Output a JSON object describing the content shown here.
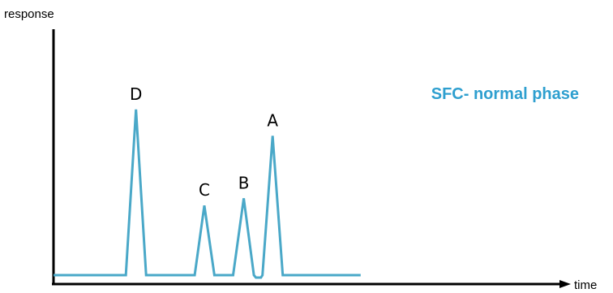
{
  "chart_data": {
    "type": "line",
    "title": "SFC- normal phase",
    "xlabel": "time",
    "ylabel": "response",
    "grid": false,
    "legend": "none",
    "colors": {
      "trace": "#4aa8c8",
      "title": "#2e9fcf",
      "axis": "#000000"
    },
    "xlim": [
      0,
      100
    ],
    "ylim": [
      0,
      100
    ],
    "series": [
      {
        "points": [
          [
            0,
            1
          ],
          [
            14.3,
            1
          ],
          [
            16.3,
            70
          ],
          [
            18.3,
            1
          ],
          [
            27.9,
            1
          ],
          [
            29.8,
            30
          ],
          [
            31.8,
            1
          ],
          [
            35.5,
            1
          ],
          [
            37.6,
            33
          ],
          [
            39.6,
            1
          ],
          [
            40.0,
            0
          ],
          [
            41.0,
            0
          ],
          [
            41.3,
            1
          ],
          [
            43.3,
            59
          ],
          [
            45.3,
            1
          ],
          [
            60.7,
            1
          ]
        ]
      }
    ],
    "peak_labels": [
      {
        "text": "D",
        "x": 16.3,
        "y": 70
      },
      {
        "text": "C",
        "x": 29.8,
        "y": 30
      },
      {
        "text": "B",
        "x": 37.6,
        "y": 33
      },
      {
        "text": "A",
        "x": 43.3,
        "y": 59
      }
    ]
  }
}
